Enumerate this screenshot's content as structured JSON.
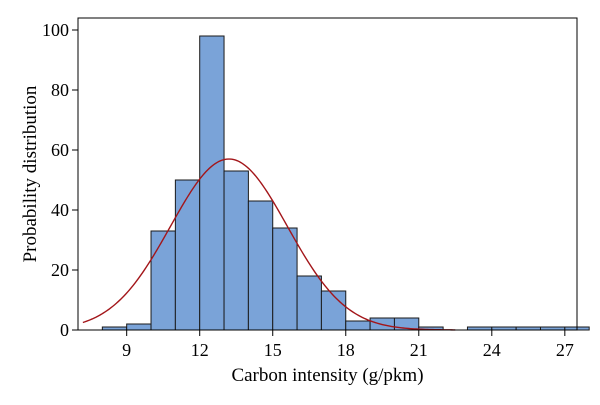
{
  "chart_data": {
    "type": "bar",
    "subtype": "histogram",
    "title": "",
    "xlabel": "Carbon intensity (g/pkm)",
    "ylabel": "Probability distribution",
    "xlim": [
      7,
      27.5
    ],
    "ylim": [
      0,
      104
    ],
    "xticks": [
      9,
      12,
      15,
      18,
      21,
      24,
      27
    ],
    "yticks": [
      0,
      20,
      40,
      60,
      80,
      100
    ],
    "bin_width": 1,
    "bins": [
      {
        "start": 8,
        "end": 9,
        "value": 1
      },
      {
        "start": 9,
        "end": 10,
        "value": 2
      },
      {
        "start": 10,
        "end": 11,
        "value": 33
      },
      {
        "start": 11,
        "end": 12,
        "value": 50
      },
      {
        "start": 12,
        "end": 13,
        "value": 98
      },
      {
        "start": 13,
        "end": 14,
        "value": 53
      },
      {
        "start": 14,
        "end": 15,
        "value": 43
      },
      {
        "start": 15,
        "end": 16,
        "value": 34
      },
      {
        "start": 16,
        "end": 17,
        "value": 18
      },
      {
        "start": 17,
        "end": 18,
        "value": 13
      },
      {
        "start": 18,
        "end": 19,
        "value": 3
      },
      {
        "start": 19,
        "end": 20,
        "value": 4
      },
      {
        "start": 20,
        "end": 21,
        "value": 4
      },
      {
        "start": 21,
        "end": 22,
        "value": 1
      },
      {
        "start": 23,
        "end": 24,
        "value": 1
      },
      {
        "start": 24,
        "end": 25,
        "value": 1
      },
      {
        "start": 25,
        "end": 26,
        "value": 1
      },
      {
        "start": 26,
        "end": 27,
        "value": 1
      },
      {
        "start": 27,
        "end": 28,
        "value": 1
      }
    ],
    "fit_curve": {
      "type": "normal",
      "mean": 13.2,
      "sd": 2.4,
      "peak": 57,
      "x_range": [
        7.2,
        22.5
      ]
    },
    "colors": {
      "bar_fill": "#7aa3d8",
      "bar_stroke": "#1a1a1a",
      "curve": "#a3161a"
    }
  }
}
